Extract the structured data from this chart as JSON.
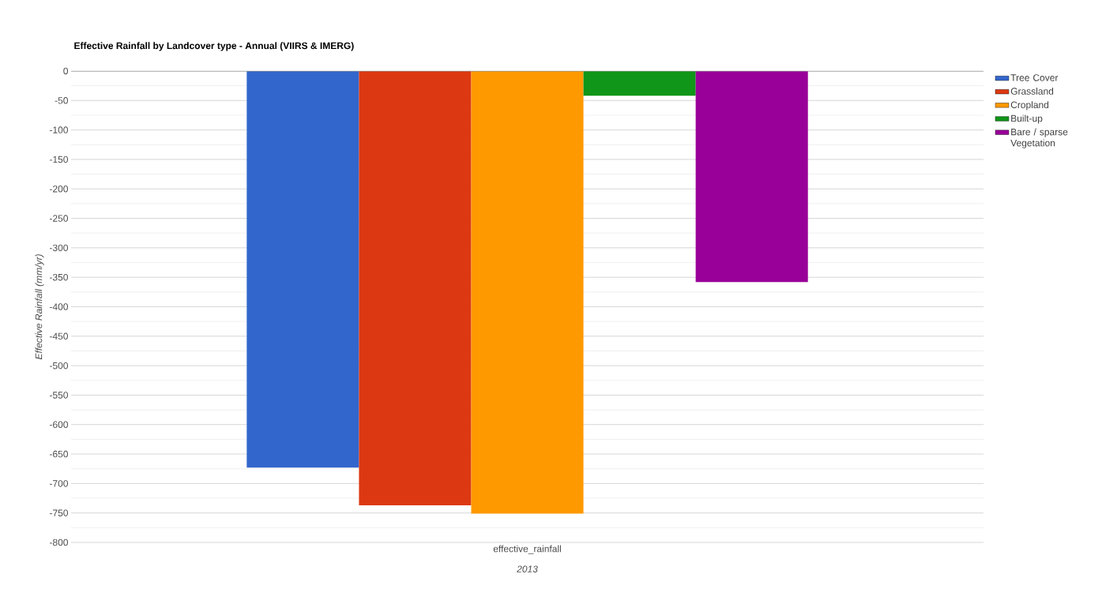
{
  "chart_data": {
    "type": "bar",
    "title": "Effective Rainfall by Landcover type - Annual (VIIRS & IMERG)",
    "xlabel": "2013",
    "ylabel": "Effective Rainfall (mm/yr)",
    "categories": [
      "effective_rainfall"
    ],
    "series": [
      {
        "name": "Tree Cover",
        "color": "#3366cc",
        "values": [
          -673
        ]
      },
      {
        "name": "Grassland",
        "color": "#dc3912",
        "values": [
          -737
        ]
      },
      {
        "name": "Cropland",
        "color": "#ff9900",
        "values": [
          -751
        ]
      },
      {
        "name": "Built-up",
        "color": "#109618",
        "values": [
          -42
        ]
      },
      {
        "name": "Bare / sparse Vegetation",
        "color": "#990099",
        "values": [
          -358
        ]
      }
    ],
    "ylim": [
      -800,
      0
    ],
    "yticks": [
      -800,
      -750,
      -700,
      -650,
      -600,
      -550,
      -500,
      -450,
      -400,
      -350,
      -300,
      -250,
      -200,
      -150,
      -100,
      -50,
      0
    ],
    "grid": "y",
    "legend": "top right"
  }
}
